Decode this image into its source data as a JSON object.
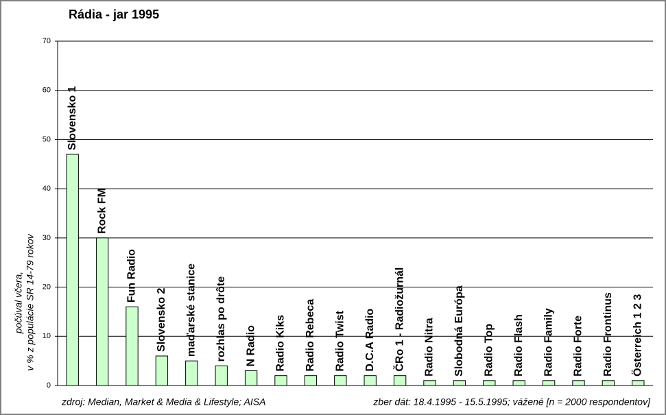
{
  "chart_data": {
    "type": "bar",
    "title": "Rádia - jar 1995",
    "y_label": [
      "počúval včera,",
      "v % z populácie SR 14-79 rokov"
    ],
    "source": "zdroj: Median, Market & Media & Lifestyle; AISA",
    "note": "zber dát: 18.4.1995 - 15.5.1995; vážené [n = 2000 respondentov]",
    "categories": [
      "Slovensko 1",
      "Rock FM",
      "Fun Radio",
      "Slovensko 2",
      "maďarské stanice",
      "rozhlas po drôte",
      "N Radio",
      "Radio Kiks",
      "Radio Rebeca",
      "Radio Twist",
      "D.C.A Radio",
      "ČRo 1 - Radiožurnál",
      "Radio Nitra",
      "Slobodná Európa",
      "Radio Top",
      "Radio Flash",
      "Radio Family",
      "Radio Forte",
      "Radio Frontinus",
      "Österreich 1 2 3"
    ],
    "values": [
      47,
      30,
      16,
      6,
      5,
      4,
      3,
      2,
      2,
      2,
      2,
      2,
      1,
      1,
      1,
      1,
      1,
      1,
      1,
      1
    ],
    "color": "#ccffcc",
    "ylim": [
      0,
      70
    ],
    "yticks": [
      0,
      10,
      20,
      30,
      40,
      50,
      60,
      70
    ],
    "grid": true
  }
}
